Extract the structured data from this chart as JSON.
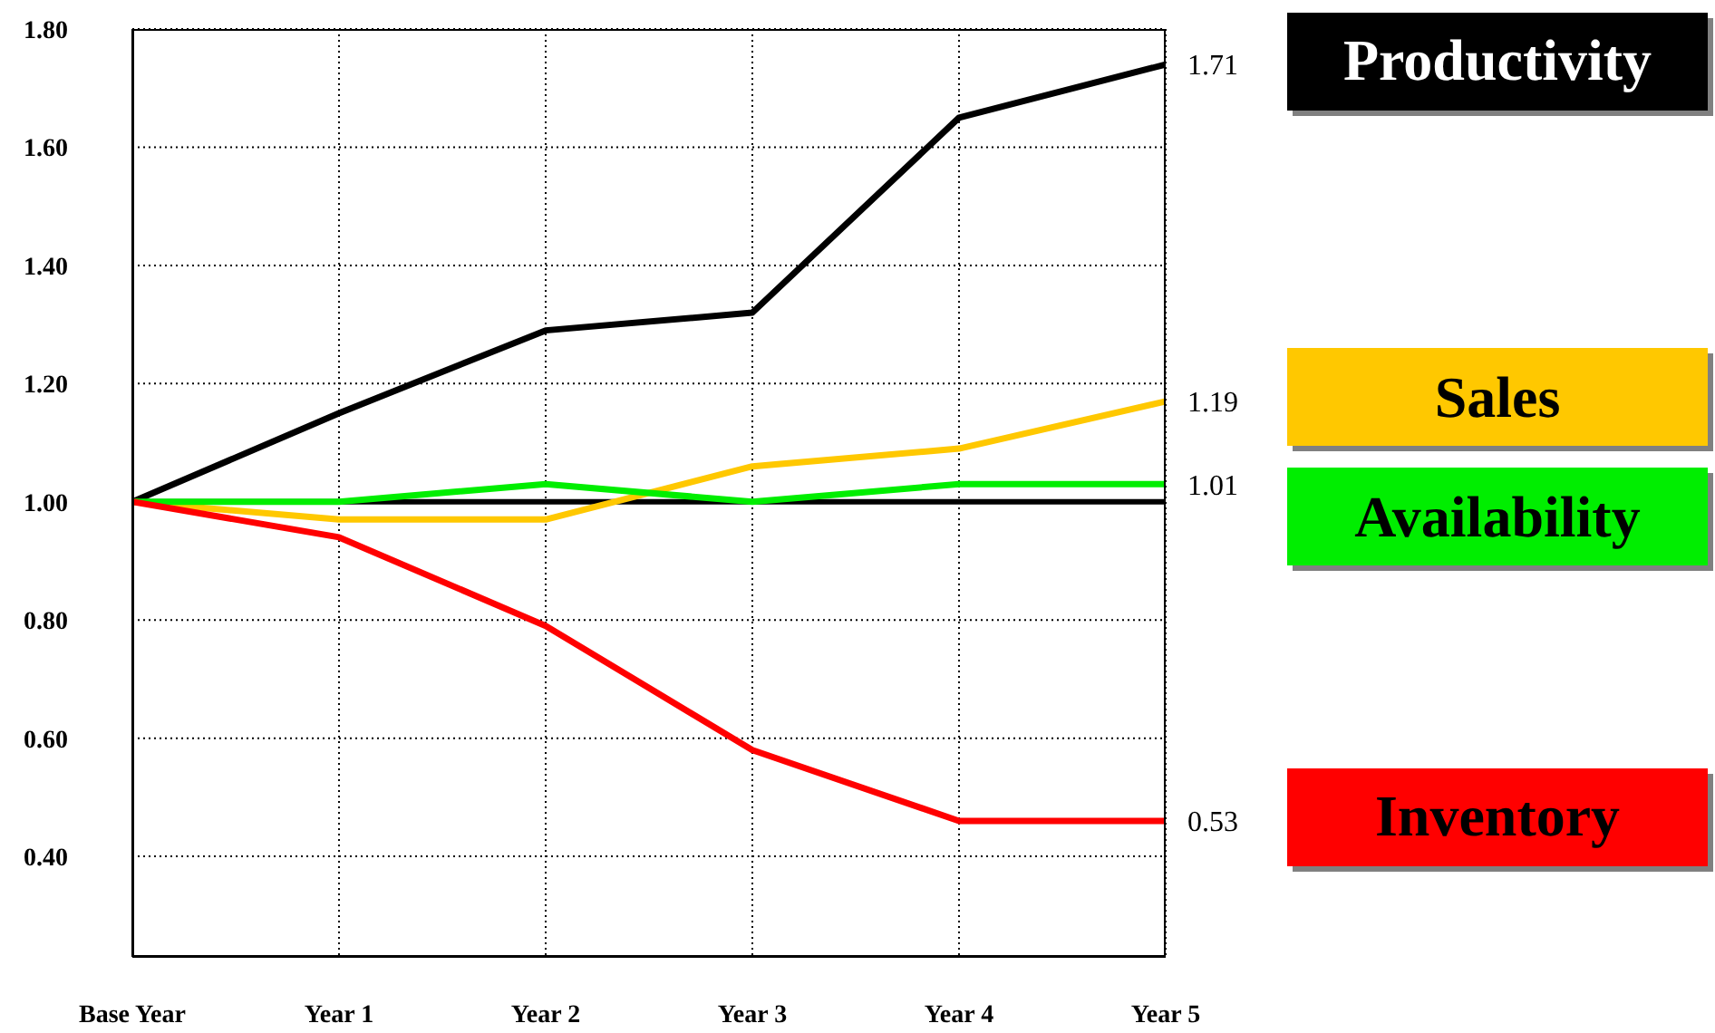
{
  "chart_data": {
    "type": "line",
    "categories": [
      "Base Year",
      "Year 1",
      "Year 2",
      "Year 3",
      "Year 4",
      "Year 5"
    ],
    "series": [
      {
        "name": "Productivity",
        "color": "#000000",
        "values": [
          1.0,
          1.15,
          1.29,
          1.32,
          1.65,
          1.74
        ]
      },
      {
        "name": "Sales",
        "color": "#ffc800",
        "values": [
          1.0,
          0.97,
          0.97,
          1.06,
          1.09,
          1.17
        ]
      },
      {
        "name": "Availability",
        "color": "#00ee00",
        "values": [
          1.0,
          1.0,
          1.03,
          1.0,
          1.03,
          1.03
        ]
      },
      {
        "name": "Inventory",
        "color": "#ff0000",
        "values": [
          1.0,
          0.94,
          0.79,
          0.58,
          0.46,
          0.46
        ]
      }
    ],
    "ylim": [
      0.23,
      1.8
    ],
    "yticks": [
      {
        "value": 0.4,
        "label": "0.40"
      },
      {
        "value": 0.6,
        "label": "0.60"
      },
      {
        "value": 0.8,
        "label": "0.80"
      },
      {
        "value": 1.0,
        "label": "1.00"
      },
      {
        "value": 1.2,
        "label": "1.20"
      },
      {
        "value": 1.4,
        "label": "1.40"
      },
      {
        "value": 1.6,
        "label": "1.60"
      },
      {
        "value": 1.8,
        "label": "1.80"
      }
    ],
    "ref_lines": [
      {
        "axis": "y",
        "value": 1.0,
        "color": "#000000"
      }
    ],
    "annotations": [
      {
        "text": "1.71",
        "x": "Year 5",
        "y": 1.74
      },
      {
        "text": "1.19",
        "x": "Year 5",
        "y": 1.17
      },
      {
        "text": "1.01",
        "x": "Year 5",
        "y": 1.03
      },
      {
        "text": "0.53",
        "x": "Year 5",
        "y": 0.46
      }
    ],
    "grid": true,
    "legend": "right"
  }
}
